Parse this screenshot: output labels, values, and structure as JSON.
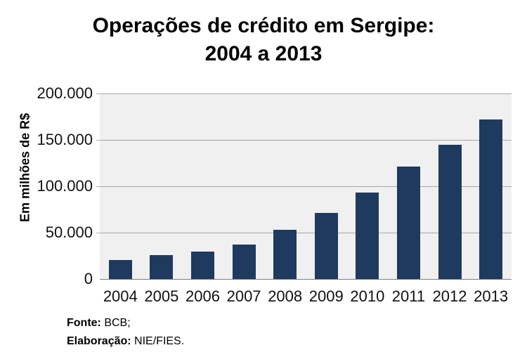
{
  "title": {
    "line1": "Operações de crédito em Sergipe:",
    "line2": "2004 a 2013"
  },
  "footer": {
    "source_label": "Fonte:",
    "source_value": "BCB;",
    "elaboration_label": "Elaboração:",
    "elaboration_value": "NIE/FIES."
  },
  "chart_data": {
    "type": "bar",
    "title": "Operações de crédito em Sergipe: 2004 a 2013",
    "categories": [
      "2004",
      "2005",
      "2006",
      "2007",
      "2008",
      "2009",
      "2010",
      "2011",
      "2012",
      "2013"
    ],
    "values": [
      20500,
      25500,
      29500,
      37500,
      53000,
      71000,
      93000,
      121000,
      145000,
      172000
    ],
    "xlabel": "",
    "ylabel": "Em milhões de R$",
    "ylim": [
      0,
      200000
    ],
    "ytick_step": 50000,
    "ytick_labels": [
      "0",
      "50.000",
      "100.000",
      "150.000",
      "200.000"
    ],
    "grid": true,
    "legend": false,
    "colors": {
      "bar": "#1e3a5e",
      "plot_background": "#f0f0f0",
      "gridline": "#a6a6a6",
      "axis_line": "#808080",
      "text": "#000000"
    }
  }
}
